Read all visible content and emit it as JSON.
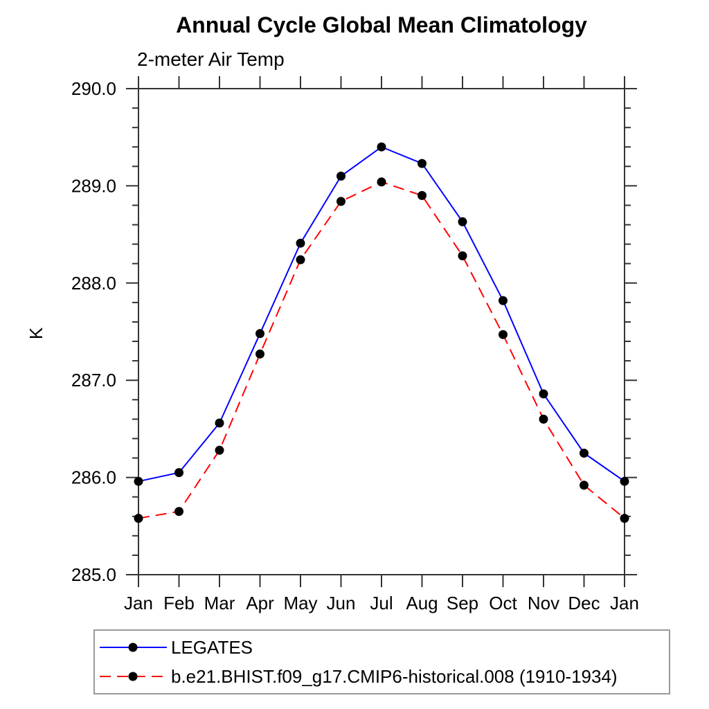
{
  "title": "Annual Cycle Global Mean Climatology",
  "subtitle": "2-meter Air Temp",
  "chart_data": {
    "type": "line",
    "x_categories": [
      "Jan",
      "Feb",
      "Mar",
      "Apr",
      "May",
      "Jun",
      "Jul",
      "Aug",
      "Sep",
      "Oct",
      "Nov",
      "Dec",
      "Jan"
    ],
    "series": [
      {
        "name": "LEGATES",
        "color": "#0000ff",
        "line_style": "solid",
        "marker": "filled-circle",
        "marker_color": "#000000",
        "values": [
          285.96,
          286.05,
          286.56,
          287.48,
          288.41,
          289.1,
          289.4,
          289.23,
          288.63,
          287.82,
          286.86,
          286.25,
          285.96
        ]
      },
      {
        "name": "b.e21.BHIST.f09_g17.CMIP6-historical.008 (1910-1934)",
        "color": "#ff0000",
        "line_style": "dashed",
        "marker": "filled-circle",
        "marker_color": "#000000",
        "values": [
          285.58,
          285.65,
          286.28,
          287.27,
          288.24,
          288.84,
          289.04,
          288.9,
          288.28,
          287.47,
          286.6,
          285.92,
          285.58
        ]
      }
    ],
    "xlabel": "",
    "ylabel": "K",
    "ylim": [
      285.0,
      290.0
    ],
    "ytick_labels": [
      "285.0",
      "286.0",
      "287.0",
      "288.0",
      "289.0",
      "290.0"
    ],
    "ytick_minor_step": 0.2,
    "ytick_major_step": 1.0,
    "grid": false,
    "legend_position": "bottom-left"
  }
}
